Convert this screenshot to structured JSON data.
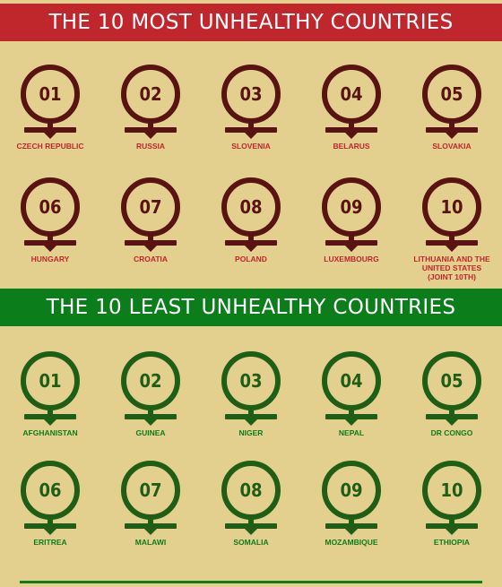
{
  "most": {
    "title": "THE 10 MOST UNHEALTHY COUNTRIES",
    "items": [
      {
        "num": "01",
        "label": "CZECH REPUBLIC"
      },
      {
        "num": "02",
        "label": "RUSSIA"
      },
      {
        "num": "03",
        "label": "SLOVENIA"
      },
      {
        "num": "04",
        "label": "BELARUS"
      },
      {
        "num": "05",
        "label": "SLOVAKIA"
      },
      {
        "num": "06",
        "label": "HUNGARY"
      },
      {
        "num": "07",
        "label": "CROATIA"
      },
      {
        "num": "08",
        "label": "POLAND"
      },
      {
        "num": "09",
        "label": "LUXEMBOURG"
      },
      {
        "num": "10",
        "label": "LITHUANIA AND THE UNITED STATES (JOINT 10TH)"
      }
    ]
  },
  "least": {
    "title": "THE 10 LEAST UNHEALTHY COUNTRIES",
    "items": [
      {
        "num": "01",
        "label": "AFGHANISTAN"
      },
      {
        "num": "02",
        "label": "GUINEA"
      },
      {
        "num": "03",
        "label": "NIGER"
      },
      {
        "num": "04",
        "label": "NEPAL"
      },
      {
        "num": "05",
        "label": "DR CONGO"
      },
      {
        "num": "06",
        "label": "ERITREA"
      },
      {
        "num": "07",
        "label": "MALAWI"
      },
      {
        "num": "08",
        "label": "SOMALIA"
      },
      {
        "num": "09",
        "label": "MOZAMBIQUE"
      },
      {
        "num": "10",
        "label": "ETHIOPIA"
      }
    ]
  },
  "colors": {
    "background": "#e3d08e",
    "red_banner": "#c0272d",
    "green_banner": "#0b7d1a",
    "red_pin": "#5a1313",
    "green_pin": "#1f5e15"
  }
}
